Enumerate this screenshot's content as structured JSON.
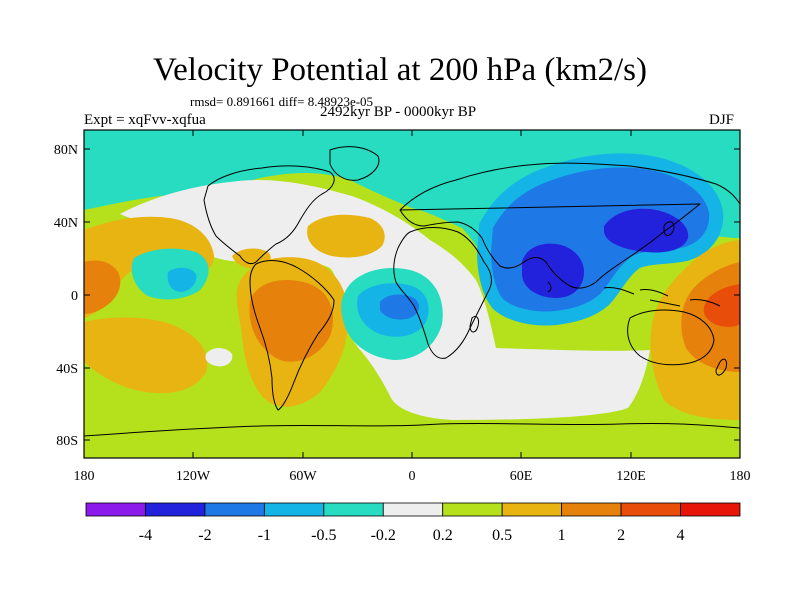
{
  "figure": {
    "title": "Velocity Potential at 200 hPa (km2/s)",
    "stats": "rmsd= 0.891661 diff= 8.48923e-05",
    "experiment": "Expt = xqFvv-xqfua",
    "period": "2492kyr BP - 0000kyr BP",
    "season": "DJF"
  },
  "map": {
    "lat_ticks": [
      "80N",
      "40N",
      "0",
      "40S",
      "80S"
    ],
    "lon_ticks": [
      "180",
      "120W",
      "60W",
      "0",
      "60E",
      "120E",
      "180"
    ],
    "lon_range": [
      -180,
      180
    ],
    "lat_range": [
      -90,
      90
    ]
  },
  "colorbar": {
    "colors": [
      "#8c1aeb",
      "#2222dc",
      "#1e78e6",
      "#14b4e6",
      "#27dcc1",
      "#eeeeee",
      "#b4e01c",
      "#e8b412",
      "#e6820c",
      "#e84d0a",
      "#e61508"
    ],
    "labels": [
      "-4",
      "-2",
      "-1",
      "-0.5",
      "-0.2",
      "0.2",
      "0.5",
      "1",
      "2",
      "4"
    ]
  },
  "fields": {
    "background_color": "#b4e01c",
    "coast_color": "#000000"
  }
}
